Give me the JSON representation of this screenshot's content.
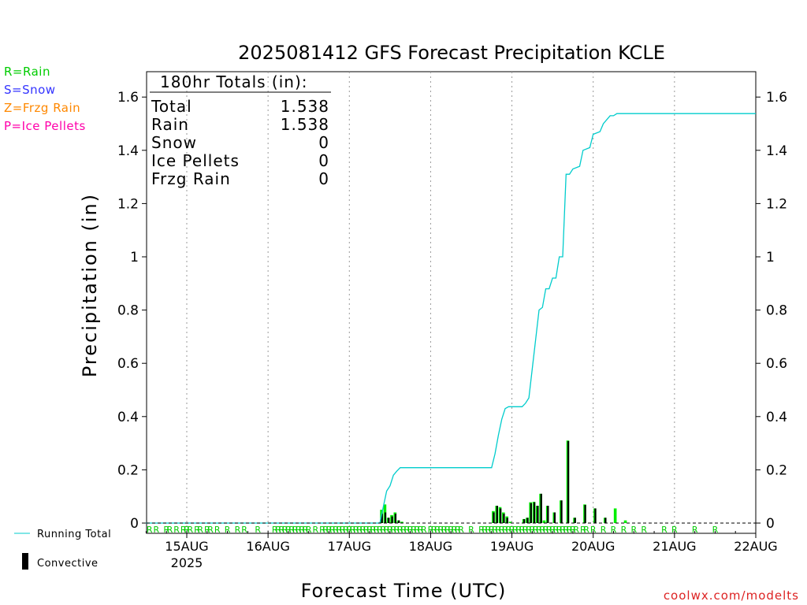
{
  "chart_data": {
    "type": "bar",
    "title": "2025081412 GFS Forecast Precipitation KCLE",
    "xlabel": "Forecast Time (UTC)",
    "ylabel": "Precipitation (in)",
    "ylim": [
      0,
      1.7
    ],
    "yticks": [
      "0",
      "0.2",
      "0.4",
      "0.6",
      "0.8",
      "1",
      "1.2",
      "1.4",
      "1.6"
    ],
    "xticks": [
      {
        "label": "15AUG",
        "sub": "2025",
        "hour": 0
      },
      {
        "label": "16AUG",
        "sub": "",
        "hour": 24
      },
      {
        "label": "17AUG",
        "sub": "",
        "hour": 48
      },
      {
        "label": "18AUG",
        "sub": "",
        "hour": 72
      },
      {
        "label": "19AUG",
        "sub": "",
        "hour": 96
      },
      {
        "label": "20AUG",
        "sub": "",
        "hour": 120
      },
      {
        "label": "21AUG",
        "sub": "",
        "hour": 144
      },
      {
        "label": "22AUG",
        "sub": "",
        "hour": 168
      }
    ],
    "xlim_hours": [
      -12,
      168
    ],
    "grid": "vertical dotted at day boundaries",
    "totals_box": {
      "header": "180hr Totals (in):",
      "rows": [
        {
          "label": "Total",
          "value": "1.538"
        },
        {
          "label": "Rain",
          "value": "1.538"
        },
        {
          "label": "Snow",
          "value": "0"
        },
        {
          "label": "Ice Pellets",
          "value": "0"
        },
        {
          "label": "Frzg Rain",
          "value": "0"
        }
      ]
    },
    "type_legend": [
      {
        "text": "R=Rain",
        "color": "#00cc00"
      },
      {
        "text": "S=Snow",
        "color": "#3333ff"
      },
      {
        "text": "Z=Frzg Rain",
        "color": "#ff8800"
      },
      {
        "text": "P=Ice Pellets",
        "color": "#ff00aa"
      }
    ],
    "bottom_legend": {
      "running_total": "Running Total",
      "convective": "Convective"
    },
    "series": [
      {
        "name": "Running Total",
        "color": "#00cccc",
        "points": [
          [
            -12,
            0
          ],
          [
            57,
            0
          ],
          [
            58,
            0.06
          ],
          [
            59,
            0.12
          ],
          [
            60,
            0.14
          ],
          [
            61,
            0.18
          ],
          [
            62,
            0.195
          ],
          [
            63,
            0.208
          ],
          [
            90,
            0.208
          ],
          [
            91,
            0.26
          ],
          [
            92,
            0.33
          ],
          [
            93,
            0.39
          ],
          [
            94,
            0.43
          ],
          [
            95,
            0.437
          ],
          [
            99,
            0.437
          ],
          [
            100,
            0.45
          ],
          [
            101,
            0.47
          ],
          [
            102,
            0.58
          ],
          [
            103,
            0.69
          ],
          [
            104,
            0.8
          ],
          [
            105,
            0.81
          ],
          [
            106,
            0.88
          ],
          [
            107,
            0.88
          ],
          [
            108,
            0.92
          ],
          [
            109,
            0.92
          ],
          [
            110,
            1.0
          ],
          [
            111,
            1.0
          ],
          [
            112,
            1.31
          ],
          [
            113,
            1.31
          ],
          [
            114,
            1.33
          ],
          [
            116,
            1.34
          ],
          [
            117,
            1.4
          ],
          [
            119,
            1.41
          ],
          [
            120,
            1.46
          ],
          [
            122,
            1.47
          ],
          [
            123,
            1.5
          ],
          [
            125,
            1.53
          ],
          [
            126,
            1.53
          ],
          [
            127,
            1.538
          ],
          [
            168,
            1.538
          ]
        ]
      },
      {
        "name": "Precip",
        "color": "#00ee00",
        "bars": [
          [
            57.5,
            0.05
          ],
          [
            58.5,
            0.07
          ],
          [
            59.5,
            0.02
          ],
          [
            60.5,
            0.03
          ],
          [
            61.5,
            0.04
          ],
          [
            62.5,
            0.01
          ],
          [
            63.5,
            0.005
          ],
          [
            90.5,
            0.045
          ],
          [
            91.5,
            0.065
          ],
          [
            92.5,
            0.06
          ],
          [
            93.5,
            0.04
          ],
          [
            94.5,
            0.025
          ],
          [
            95.5,
            0.005
          ],
          [
            99.5,
            0.015
          ],
          [
            100.5,
            0.02
          ],
          [
            101.5,
            0.078
          ],
          [
            102.5,
            0.08
          ],
          [
            103.5,
            0.065
          ],
          [
            104.5,
            0.11
          ],
          [
            105.5,
            0.01
          ],
          [
            106.5,
            0.065
          ],
          [
            108.5,
            0.04
          ],
          [
            110.5,
            0.085
          ],
          [
            112.5,
            0.31
          ],
          [
            114.5,
            0.02
          ],
          [
            117.5,
            0.07
          ],
          [
            120.5,
            0.055
          ],
          [
            123.5,
            0.02
          ],
          [
            126.5,
            0.055
          ],
          [
            129.5,
            0.01
          ]
        ]
      },
      {
        "name": "Convective",
        "color": "#000000",
        "bars": [
          [
            57.5,
            0.035
          ],
          [
            58.5,
            0.04
          ],
          [
            59.5,
            0.02
          ],
          [
            60.5,
            0.025
          ],
          [
            61.5,
            0.035
          ],
          [
            62.5,
            0.01
          ],
          [
            90.5,
            0.04
          ],
          [
            91.5,
            0.065
          ],
          [
            92.5,
            0.055
          ],
          [
            93.5,
            0.035
          ],
          [
            94.5,
            0.02
          ],
          [
            99.5,
            0.015
          ],
          [
            100.5,
            0.02
          ],
          [
            101.5,
            0.075
          ],
          [
            102.5,
            0.078
          ],
          [
            103.5,
            0.065
          ],
          [
            104.5,
            0.11
          ],
          [
            106.5,
            0.065
          ],
          [
            108.5,
            0.04
          ],
          [
            110.5,
            0.085
          ],
          [
            112.5,
            0.308
          ],
          [
            114.5,
            0.02
          ],
          [
            117.5,
            0.068
          ],
          [
            120.5,
            0.055
          ],
          [
            123.5,
            0.02
          ]
        ]
      }
    ],
    "type_markers": {
      "text": "R",
      "color": "#00cc00",
      "hours": [
        -11,
        -9,
        -6,
        -5,
        -3,
        -1,
        0,
        1,
        3,
        4,
        6,
        7,
        9,
        12,
        15,
        17,
        21,
        26,
        27,
        28,
        29,
        30,
        31,
        32,
        33,
        34,
        35,
        36,
        38,
        40,
        41,
        42,
        43,
        44,
        45,
        46,
        47,
        48,
        49,
        50,
        51,
        52,
        53,
        54,
        55,
        56,
        57,
        58,
        59,
        60,
        61,
        62,
        63,
        64,
        65,
        66,
        67,
        68,
        69,
        70,
        72,
        73,
        74,
        75,
        76,
        77,
        78,
        79,
        80,
        81,
        84,
        87,
        88,
        89,
        90,
        91,
        92,
        93,
        94,
        95,
        96,
        97,
        98,
        99,
        100,
        101,
        102,
        103,
        104,
        105,
        106,
        107,
        108,
        109,
        110,
        111,
        112,
        113,
        114,
        115,
        117,
        118,
        120,
        123,
        126,
        129,
        132,
        135,
        141,
        144,
        150,
        156
      ]
    },
    "watermark": "coolwx.com/modelts"
  }
}
